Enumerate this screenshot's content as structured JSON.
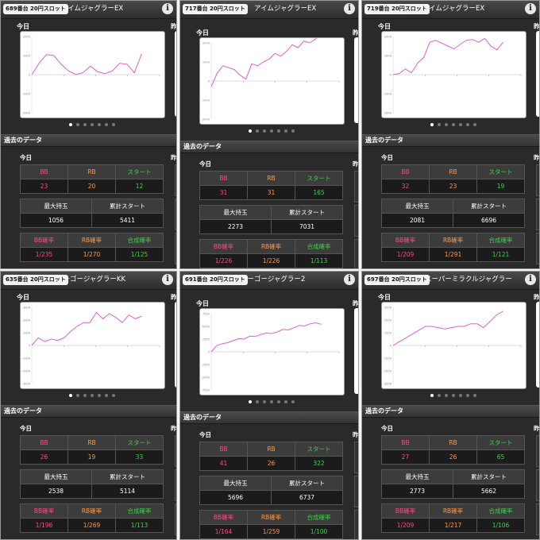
{
  "labels": {
    "today": "今日",
    "yesterday": "昨",
    "past_data": "過去のデータ",
    "bb": "BB",
    "rb": "RB",
    "start": "スタート",
    "max_hold": "最大持玉",
    "total_start": "累計スタート",
    "bb_rate": "BB確率",
    "rb_rate": "RB確率",
    "combined_rate": "合成確率",
    "info": "i"
  },
  "colors": {
    "bb": "#ff4a86",
    "rb": "#ff9a46",
    "start": "#3ed24a",
    "line": "#e060c8"
  },
  "panels": [
    {
      "badge": "689番台 20円スロット",
      "machine": "アイムジャグラーEX",
      "bb": "23",
      "rb": "20",
      "start": "12",
      "max_hold": "1056",
      "total_start": "5411",
      "bb_rate": "1/235",
      "rb_rate": "1/270",
      "combined_rate": "1/125",
      "y_ticks": [
        "2000",
        "1000",
        "0",
        "-1000",
        "-2000"
      ],
      "series": [
        0,
        600,
        1050,
        1000,
        550,
        200,
        0,
        100,
        450,
        150,
        50,
        200,
        600,
        550,
        100,
        1100
      ]
    },
    {
      "badge": "717番台 20円スロット",
      "machine": "アイムジャグラーEX",
      "bb": "31",
      "rb": "31",
      "start": "165",
      "max_hold": "2273",
      "total_start": "7031",
      "bb_rate": "1/226",
      "rb_rate": "1/226",
      "combined_rate": "1/113",
      "y_ticks": [
        "2000",
        "1000",
        "0",
        "-1000",
        "-2000"
      ],
      "series": [
        -300,
        400,
        800,
        700,
        600,
        300,
        100,
        900,
        800,
        1000,
        1150,
        1450,
        1300,
        1550,
        1900,
        1750,
        2100,
        2000,
        2200,
        2450
      ]
    },
    {
      "badge": "719番台 20円スロット",
      "machine": "アイムジャグラーEX",
      "bb": "32",
      "rb": "23",
      "start": "19",
      "max_hold": "2081",
      "total_start": "6696",
      "bb_rate": "1/209",
      "rb_rate": "1/291",
      "combined_rate": "1/121",
      "y_ticks": [
        "2000",
        "1000",
        "0",
        "-1000",
        "-2000"
      ],
      "series": [
        0,
        50,
        300,
        100,
        600,
        900,
        1700,
        1800,
        1650,
        1500,
        1350,
        1600,
        1800,
        1850,
        1700,
        1900,
        1500,
        1300,
        1700
      ]
    },
    {
      "badge": "635番台 20円スロット",
      "machine": "ゴーゴージャグラーKK",
      "bb": "26",
      "rb": "19",
      "start": "33",
      "max_hold": "2538",
      "total_start": "5114",
      "bb_rate": "1/196",
      "rb_rate": "1/269",
      "combined_rate": "1/113",
      "y_ticks": [
        "3000",
        "2000",
        "1000",
        "0",
        "-1000",
        "-2000",
        "-3000"
      ],
      "series": [
        0,
        600,
        300,
        500,
        400,
        600,
        1100,
        1500,
        1800,
        1800,
        2600,
        2100,
        2500,
        2200,
        1800,
        2400,
        2100,
        2300
      ]
    },
    {
      "badge": "691番台 20円スロット",
      "machine": "ゴーゴージャグラー2",
      "bb": "41",
      "rb": "26",
      "start": "322",
      "max_hold": "5696",
      "total_start": "6737",
      "bb_rate": "1/164",
      "rb_rate": "1/259",
      "combined_rate": "1/100",
      "y_ticks": [
        "7500",
        "5000",
        "2500",
        "0",
        "-2500",
        "-5000",
        "-7500"
      ],
      "series": [
        0,
        1200,
        1600,
        1800,
        2200,
        2600,
        2500,
        3100,
        3000,
        3400,
        3700,
        3600,
        3900,
        4400,
        4300,
        4700,
        5200,
        5100,
        5500,
        5700,
        5400
      ]
    },
    {
      "badge": "697番台 20円スロット",
      "machine": "スーパーミラクルジャグラー",
      "bb": "27",
      "rb": "26",
      "start": "65",
      "max_hold": "2773",
      "total_start": "5662",
      "bb_rate": "1/209",
      "rb_rate": "1/217",
      "combined_rate": "1/106",
      "y_ticks": [
        "3000",
        "2000",
        "1000",
        "0",
        "-1000",
        "-2000",
        "-3000"
      ],
      "series": [
        0,
        300,
        600,
        900,
        1200,
        1500,
        1500,
        1400,
        1300,
        1400,
        1500,
        1500,
        1700,
        1700,
        1400,
        1900,
        2400,
        2700
      ]
    }
  ]
}
